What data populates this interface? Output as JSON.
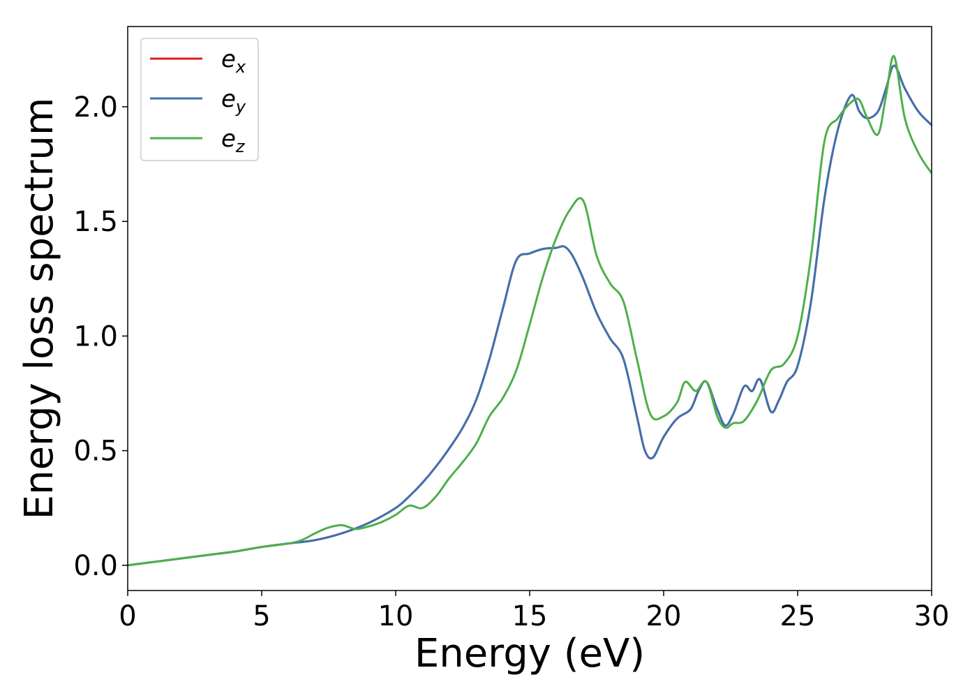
{
  "chart_data": {
    "type": "line",
    "xlabel": "Energy (eV)",
    "ylabel": "Energy loss spectrum",
    "xlim": [
      0,
      30
    ],
    "ylim": [
      -0.11,
      2.35
    ],
    "xticks": [
      0,
      5,
      10,
      15,
      20,
      25,
      30
    ],
    "xtick_labels": [
      "0",
      "5",
      "10",
      "15",
      "20",
      "25",
      "30"
    ],
    "yticks": [
      0.0,
      0.5,
      1.0,
      1.5,
      2.0
    ],
    "ytick_labels": [
      "0.0",
      "0.5",
      "1.0",
      "1.5",
      "2.0"
    ],
    "grid": false,
    "legend_position": "top-left",
    "series": [
      {
        "name": "e_x",
        "label_base": "e",
        "label_sub": "x",
        "color": "#e41a1c",
        "x": [
          0,
          1,
          2,
          3,
          4,
          5,
          6,
          7,
          8,
          9,
          10,
          10.5,
          11,
          11.5,
          12,
          12.5,
          13,
          13.5,
          14,
          14.5,
          15,
          15.5,
          16,
          16.3,
          16.6,
          17,
          17.5,
          18,
          18.5,
          19,
          19.3,
          19.6,
          20,
          20.5,
          21,
          21.3,
          21.6,
          22,
          22.3,
          22.6,
          23,
          23.3,
          23.6,
          24,
          24.3,
          24.6,
          25,
          25.5,
          26,
          26.5,
          27,
          27.3,
          27.6,
          28,
          28.3,
          28.6,
          29,
          29.5,
          30
        ],
        "y": [
          0,
          0.015,
          0.03,
          0.045,
          0.06,
          0.08,
          0.095,
          0.11,
          0.14,
          0.185,
          0.25,
          0.3,
          0.36,
          0.43,
          0.51,
          0.6,
          0.72,
          0.9,
          1.12,
          1.33,
          1.36,
          1.38,
          1.385,
          1.39,
          1.35,
          1.25,
          1.1,
          0.99,
          0.9,
          0.65,
          0.5,
          0.47,
          0.56,
          0.64,
          0.68,
          0.76,
          0.8,
          0.68,
          0.61,
          0.66,
          0.78,
          0.76,
          0.81,
          0.67,
          0.72,
          0.8,
          0.87,
          1.15,
          1.6,
          1.9,
          2.05,
          1.98,
          1.95,
          1.98,
          2.08,
          2.18,
          2.08,
          1.98,
          1.92
        ]
      },
      {
        "name": "e_y",
        "label_base": "e",
        "label_sub": "y",
        "color": "#3d72b0",
        "x": [
          0,
          1,
          2,
          3,
          4,
          5,
          6,
          7,
          8,
          9,
          10,
          10.5,
          11,
          11.5,
          12,
          12.5,
          13,
          13.5,
          14,
          14.5,
          15,
          15.5,
          16,
          16.3,
          16.6,
          17,
          17.5,
          18,
          18.5,
          19,
          19.3,
          19.6,
          20,
          20.5,
          21,
          21.3,
          21.6,
          22,
          22.3,
          22.6,
          23,
          23.3,
          23.6,
          24,
          24.3,
          24.6,
          25,
          25.5,
          26,
          26.5,
          27,
          27.3,
          27.6,
          28,
          28.3,
          28.6,
          29,
          29.5,
          30
        ],
        "y": [
          0,
          0.015,
          0.03,
          0.045,
          0.06,
          0.08,
          0.095,
          0.11,
          0.14,
          0.185,
          0.25,
          0.3,
          0.36,
          0.43,
          0.51,
          0.6,
          0.72,
          0.9,
          1.12,
          1.33,
          1.36,
          1.38,
          1.385,
          1.39,
          1.35,
          1.25,
          1.1,
          0.99,
          0.9,
          0.65,
          0.5,
          0.47,
          0.56,
          0.64,
          0.68,
          0.76,
          0.8,
          0.68,
          0.61,
          0.66,
          0.78,
          0.76,
          0.81,
          0.67,
          0.72,
          0.8,
          0.87,
          1.15,
          1.6,
          1.9,
          2.05,
          1.98,
          1.95,
          1.98,
          2.08,
          2.18,
          2.08,
          1.98,
          1.92
        ]
      },
      {
        "name": "e_z",
        "label_base": "e",
        "label_sub": "z",
        "color": "#4daf4a",
        "x": [
          0,
          1,
          2,
          3,
          4,
          5,
          6,
          6.5,
          7,
          7.5,
          8,
          8.5,
          9,
          9.5,
          10,
          10.5,
          11,
          11.5,
          12,
          12.5,
          13,
          13.5,
          14,
          14.5,
          15,
          15.5,
          16,
          16.5,
          17,
          17.5,
          18,
          18.5,
          19,
          19.5,
          20,
          20.5,
          20.8,
          21.2,
          21.6,
          22,
          22.3,
          22.6,
          23,
          23.5,
          24,
          24.5,
          25,
          25.5,
          26,
          26.5,
          27,
          27.3,
          27.6,
          28,
          28.3,
          28.6,
          29,
          29.5,
          30
        ],
        "y": [
          0,
          0.015,
          0.03,
          0.045,
          0.06,
          0.08,
          0.095,
          0.11,
          0.14,
          0.165,
          0.175,
          0.158,
          0.17,
          0.19,
          0.22,
          0.26,
          0.25,
          0.3,
          0.38,
          0.45,
          0.53,
          0.65,
          0.73,
          0.85,
          1.05,
          1.26,
          1.43,
          1.55,
          1.59,
          1.35,
          1.23,
          1.15,
          0.9,
          0.66,
          0.65,
          0.71,
          0.8,
          0.76,
          0.8,
          0.65,
          0.6,
          0.62,
          0.63,
          0.72,
          0.85,
          0.88,
          1.0,
          1.35,
          1.85,
          1.95,
          2.02,
          2.03,
          1.95,
          1.88,
          2.05,
          2.22,
          1.95,
          1.8,
          1.71
        ]
      }
    ]
  }
}
